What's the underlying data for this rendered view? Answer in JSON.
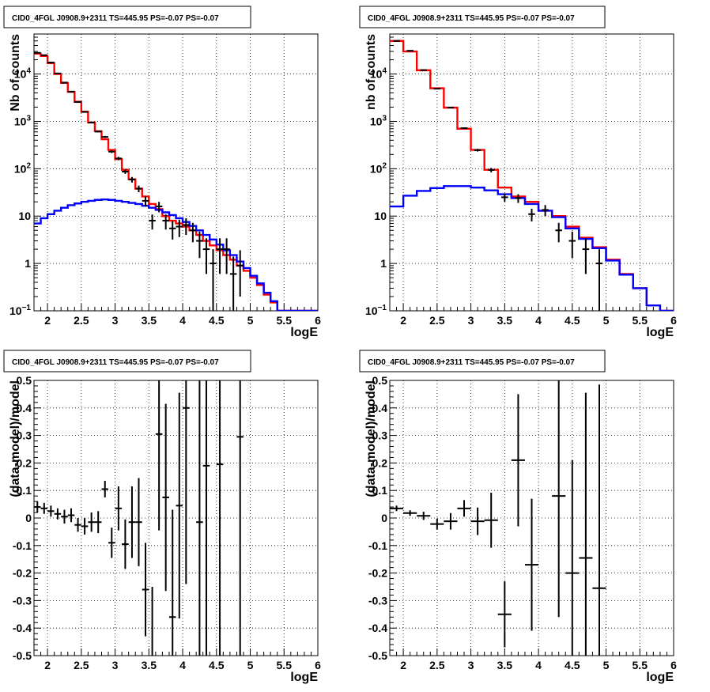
{
  "chart_data": [
    {
      "type": "line",
      "panel": "top-left",
      "title": "CID0_4FGL J0908.9+2311 TS=445.95 PS=-0.07 PS=-0.07",
      "xlabel": "logE",
      "ylabel": "Nb of counts",
      "xlim": [
        1.8,
        6
      ],
      "ylim": [
        0.1,
        70000
      ],
      "log_y": true,
      "grid": true,
      "xticks": [
        "2",
        "2.5",
        "3",
        "3.5",
        "4",
        "4.5",
        "5",
        "5.5",
        "6"
      ],
      "yticks": [
        "10^-1",
        "1",
        "10",
        "10^2",
        "10^3",
        "10^4"
      ],
      "bin_edges": [
        1.8,
        1.9,
        2.0,
        2.1,
        2.2,
        2.3,
        2.4,
        2.5,
        2.6,
        2.7,
        2.8,
        2.9,
        3.0,
        3.1,
        3.2,
        3.3,
        3.4,
        3.5,
        3.6,
        3.7,
        3.8,
        3.9,
        4.0,
        4.1,
        4.2,
        4.3,
        4.4,
        4.5,
        4.6,
        4.7,
        4.8,
        4.9,
        5.0,
        5.1,
        5.2,
        5.3,
        5.4,
        5.5,
        5.6,
        5.7,
        5.8,
        5.9,
        6.0
      ],
      "series": [
        {
          "color": "#ff0000",
          "values": [
            27000,
            24000,
            17000,
            10000,
            6500,
            4200,
            2600,
            1600,
            950,
            620,
            420,
            250,
            160,
            95,
            60,
            38,
            26,
            18,
            14,
            10,
            8,
            7,
            6,
            5,
            4,
            3,
            2.4,
            1.9,
            1.5,
            1.2,
            0.9,
            0.7,
            0.5,
            0.35,
            0.22,
            0.15,
            0.1,
            0.1,
            0.1,
            0.1,
            0.1,
            0.1
          ]
        },
        {
          "color": "#0000ff",
          "values": [
            7,
            9,
            11,
            13,
            15,
            17,
            18.5,
            20,
            21,
            22,
            22.5,
            22,
            21,
            20,
            19,
            18,
            16.5,
            15,
            13.5,
            12,
            10.5,
            9,
            7.5,
            6.2,
            5,
            4,
            3.2,
            2.5,
            1.9,
            1.5,
            1.1,
            0.8,
            0.55,
            0.38,
            0.24,
            0.16,
            0.1,
            0.1,
            0.1,
            0.1,
            0.1,
            0.1
          ]
        }
      ],
      "data_points": {
        "x": [
          1.85,
          1.95,
          2.05,
          2.15,
          2.25,
          2.35,
          2.45,
          2.55,
          2.65,
          2.75,
          2.85,
          2.95,
          3.05,
          3.15,
          3.25,
          3.35,
          3.45,
          3.55,
          3.65,
          3.75,
          3.85,
          3.95,
          4.05,
          4.15,
          4.25,
          4.35,
          4.45,
          4.55,
          4.65,
          4.75,
          4.85
        ],
        "y": [
          28000,
          25000,
          17500,
          10300,
          6600,
          4250,
          2560,
          1580,
          940,
          610,
          470,
          230,
          165,
          87,
          59,
          38,
          21,
          8,
          16,
          8,
          5.5,
          6,
          6.5,
          5,
          3,
          2,
          1,
          2,
          2,
          0.6,
          0.9
        ],
        "y_err_low": [
          170,
          160,
          130,
          100,
          80,
          65,
          50,
          40,
          31,
          25,
          22,
          15,
          13,
          9,
          8,
          6,
          5,
          2.8,
          4,
          2.8,
          2.3,
          2.4,
          2.5,
          2.2,
          1.7,
          1.4,
          0.9,
          1.4,
          1.4,
          0.5,
          0.7
        ],
        "y_err_high": [
          170,
          160,
          130,
          100,
          80,
          65,
          50,
          40,
          31,
          25,
          22,
          15,
          13,
          9,
          8,
          6,
          5,
          2.8,
          4,
          2.8,
          2.3,
          2.4,
          2.5,
          2.2,
          1.7,
          1.4,
          1.0,
          1.4,
          1.4,
          0.8,
          1.0
        ]
      }
    },
    {
      "type": "line",
      "panel": "top-right",
      "title": "CID0_4FGL J0908.9+2311 TS=445.95 PS=-0.07 PS=-0.07",
      "xlabel": "logE",
      "ylabel": "nb of counts",
      "xlim": [
        1.8,
        6
      ],
      "ylim": [
        0.1,
        70000
      ],
      "log_y": true,
      "grid": true,
      "xticks": [
        "2",
        "2.5",
        "3",
        "3.5",
        "4",
        "4.5",
        "5",
        "5.5",
        "6"
      ],
      "yticks": [
        "10^-1",
        "1",
        "10",
        "10^2",
        "10^3",
        "10^4"
      ],
      "bin_edges": [
        1.8,
        2.0,
        2.2,
        2.4,
        2.6,
        2.8,
        3.0,
        3.2,
        3.4,
        3.6,
        3.8,
        4.0,
        4.2,
        4.4,
        4.6,
        4.8,
        5.0,
        5.2,
        5.4,
        5.6,
        5.8,
        6.0
      ],
      "series": [
        {
          "color": "#ff0000",
          "values": [
            50000,
            30000,
            12000,
            5000,
            1950,
            700,
            250,
            95,
            40,
            26,
            20,
            13,
            10,
            6,
            3.5,
            2.2,
            1.2,
            0.6,
            0.3,
            0.13,
            0.1
          ]
        },
        {
          "color": "#0000ff",
          "values": [
            16,
            27,
            34,
            39,
            43,
            43,
            40,
            35,
            29,
            24,
            18,
            13,
            9.5,
            5.5,
            3.3,
            2.1,
            1.15,
            0.58,
            0.3,
            0.13,
            0.1
          ]
        }
      ],
      "data_points": {
        "x": [
          1.9,
          2.1,
          2.3,
          2.5,
          2.7,
          2.9,
          3.1,
          3.3,
          3.5,
          3.7,
          3.9,
          4.1,
          4.3,
          4.5,
          4.7,
          4.9
        ],
        "y": [
          50000,
          31000,
          12100,
          4900,
          1960,
          720,
          247,
          94,
          25,
          24,
          11,
          13.5,
          5,
          3,
          2,
          1
        ],
        "y_err_low": [
          220,
          175,
          110,
          70,
          44,
          27,
          16,
          10,
          5,
          5,
          3.3,
          3.6,
          2.2,
          1.7,
          1.4,
          0.9
        ],
        "y_err_high": [
          220,
          175,
          110,
          70,
          44,
          27,
          16,
          10,
          5,
          5,
          3.3,
          3.6,
          2.2,
          1.7,
          1.4,
          1.0
        ]
      }
    },
    {
      "type": "scatter",
      "panel": "bottom-left",
      "title": "CID0_4FGL J0908.9+2311 TS=445.95 PS=-0.07 PS=-0.07",
      "xlabel": "logE",
      "ylabel": "(data-model)/model",
      "xlim": [
        1.8,
        6
      ],
      "ylim": [
        -0.5,
        0.5
      ],
      "log_y": false,
      "grid": true,
      "xticks": [
        "2",
        "2.5",
        "3",
        "3.5",
        "4",
        "4.5",
        "5",
        "5.5",
        "6"
      ],
      "yticks": [
        "-0.5",
        "-0.4",
        "-0.3",
        "-0.2",
        "-0.1",
        "0",
        "0.1",
        "0.2",
        "0.3",
        "0.4",
        "0.5"
      ],
      "data_points": {
        "x": [
          1.85,
          1.95,
          2.05,
          2.15,
          2.25,
          2.35,
          2.45,
          2.55,
          2.65,
          2.75,
          2.85,
          2.95,
          3.05,
          3.15,
          3.25,
          3.35,
          3.45,
          3.55,
          3.65,
          3.75,
          3.85,
          3.95,
          4.05,
          4.25,
          4.35,
          4.55,
          4.85
        ],
        "x_halfwidth": 0.05,
        "y": [
          0.04,
          0.035,
          0.025,
          0.015,
          0.005,
          0.01,
          -0.025,
          -0.03,
          -0.015,
          -0.015,
          0.105,
          -0.09,
          0.035,
          -0.095,
          -0.015,
          -0.015,
          -0.26,
          -0.55,
          0.305,
          0.075,
          -0.36,
          0.045,
          0.4,
          -0.015,
          0.19,
          0.195,
          0.295
        ],
        "y_err": [
          0.02,
          0.02,
          0.02,
          0.02,
          0.025,
          0.025,
          0.025,
          0.03,
          0.035,
          0.04,
          0.03,
          0.055,
          0.08,
          0.09,
          0.13,
          0.16,
          0.17,
          0.3,
          0.35,
          0.34,
          0.39,
          0.41,
          0.64,
          0.7,
          0.9,
          0.9,
          1.1
        ]
      }
    },
    {
      "type": "scatter",
      "panel": "bottom-right",
      "title": "CID0_4FGL J0908.9+2311 TS=445.95 PS=-0.07 PS=-0.07",
      "xlabel": "logE",
      "ylabel": "(data-model)/model",
      "xlim": [
        1.8,
        6
      ],
      "ylim": [
        -0.5,
        0.5
      ],
      "log_y": false,
      "grid": true,
      "xticks": [
        "2",
        "2.5",
        "3",
        "3.5",
        "4",
        "4.5",
        "5",
        "5.5",
        "6"
      ],
      "yticks": [
        "-0.5",
        "-0.4",
        "-0.3",
        "-0.2",
        "-0.1",
        "0",
        "0.1",
        "0.2",
        "0.3",
        "0.4",
        "0.5"
      ],
      "data_points": {
        "x": [
          1.9,
          2.1,
          2.3,
          2.5,
          2.7,
          2.9,
          3.1,
          3.3,
          3.5,
          3.7,
          3.9,
          4.3,
          4.5,
          4.7,
          4.9
        ],
        "x_halfwidth": 0.1,
        "y": [
          0.035,
          0.018,
          0.008,
          -0.022,
          -0.012,
          0.035,
          -0.012,
          -0.008,
          -0.35,
          0.21,
          -0.17,
          0.08,
          -0.2,
          -0.145,
          -0.255
        ],
        "y_err": [
          0.01,
          0.01,
          0.015,
          0.02,
          0.03,
          0.03,
          0.05,
          0.1,
          0.12,
          0.24,
          0.24,
          0.44,
          0.41,
          0.6,
          0.74
        ]
      }
    }
  ]
}
